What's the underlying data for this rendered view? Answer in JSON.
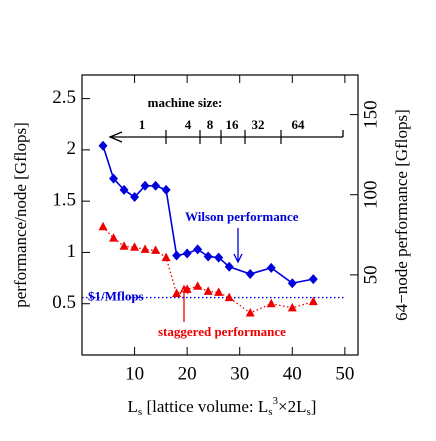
{
  "chart_data": {
    "type": "line",
    "x_label": [
      "L",
      "s",
      " [lattice volume: L",
      "s",
      "3",
      "×2L",
      "s",
      "]"
    ],
    "y_label": "performance/node [Gflops]",
    "y2_label": "64−node performance [Gflops]",
    "x": [
      4,
      6,
      8,
      10,
      12,
      14,
      16,
      18,
      20,
      22,
      24,
      26,
      28,
      32,
      36,
      40,
      44
    ],
    "series": [
      {
        "name": "Wilson performance",
        "color": "#0000dd",
        "marker": "diamond",
        "values": [
          2.04,
          1.72,
          1.61,
          1.54,
          1.65,
          1.65,
          1.61,
          0.97,
          0.99,
          1.03,
          0.96,
          0.95,
          0.86,
          0.79,
          0.85,
          0.7,
          0.74
        ]
      },
      {
        "name": "staggered performance",
        "color": "#ee0000",
        "marker": "triangle",
        "dotted": true,
        "values": [
          1.25,
          1.14,
          1.06,
          1.05,
          1.03,
          1.02,
          0.95,
          0.6,
          0.64,
          0.67,
          0.62,
          0.61,
          0.56,
          0.41,
          0.5,
          0.46,
          0.52
        ]
      }
    ],
    "reference_line": {
      "label": "$1/Mflops",
      "value": 0.56,
      "color": "#0000dd",
      "x_range": [
        0,
        50
      ]
    },
    "machine_size": {
      "title": "machine size:",
      "labels": [
        "1",
        "4",
        "8",
        "16",
        "32",
        "64"
      ]
    },
    "xlim": [
      0,
      52.5
    ],
    "xticks": [
      10,
      20,
      30,
      40,
      50
    ],
    "ylim": [
      0,
      2.73
    ],
    "yticks": [
      0.5,
      1,
      1.5,
      2,
      2.5
    ],
    "y2lim": [
      0,
      174.7
    ],
    "y2ticks": [
      50,
      100,
      150
    ]
  }
}
